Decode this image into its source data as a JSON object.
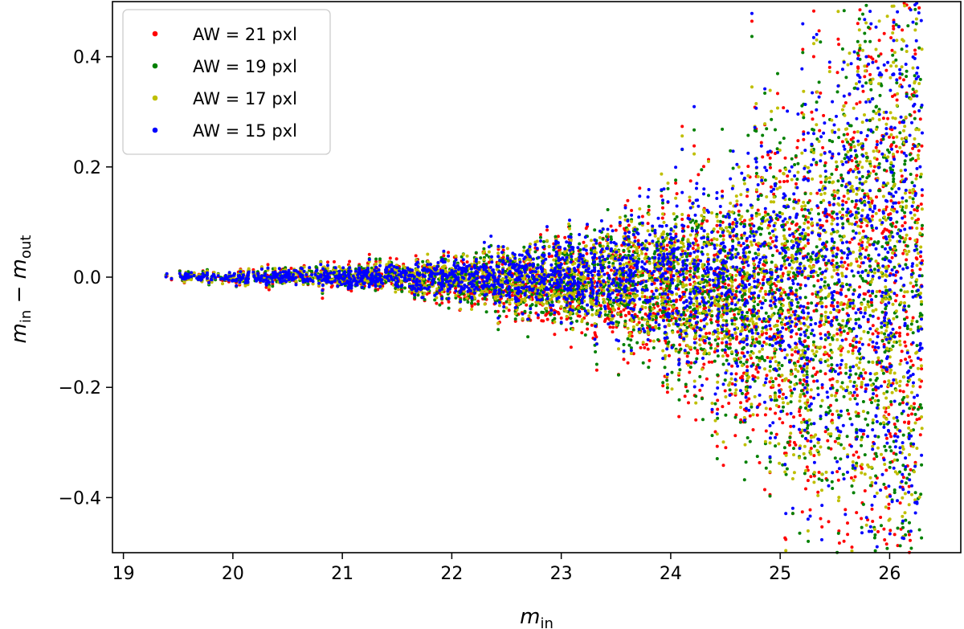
{
  "chart_data": {
    "type": "scatter",
    "title": "",
    "xlabel": {
      "main": "m",
      "sub": "in"
    },
    "ylabel": {
      "m1": "m",
      "sub1": "in",
      "op": " − ",
      "m2": "m",
      "sub2": "out"
    },
    "xlim": [
      18.9,
      26.65
    ],
    "ylim": [
      -0.5,
      0.5
    ],
    "xticks": [
      19,
      20,
      21,
      22,
      23,
      24,
      25,
      26
    ],
    "yticks": [
      -0.4,
      -0.2,
      0.0,
      0.2,
      0.4
    ],
    "ytick_labels": [
      "−0.4",
      "−0.2",
      "0.0",
      "0.2",
      "0.4"
    ],
    "grid": false,
    "legend_position": "top-left",
    "series": [
      {
        "name": "AW = 21 pxl",
        "color": "#ff0000",
        "spread_scale": 1.0,
        "bias": -0.035
      },
      {
        "name": "AW = 19 pxl",
        "color": "#008000",
        "spread_scale": 0.95,
        "bias": -0.025
      },
      {
        "name": "AW = 17 pxl",
        "color": "#bfbf00",
        "spread_scale": 0.9,
        "bias": -0.015
      },
      {
        "name": "AW = 15 pxl",
        "color": "#0000ff",
        "spread_scale": 0.85,
        "bias": 0.0
      }
    ],
    "x_range_data": [
      19.3,
      26.3
    ],
    "points_per_series": 2600
  }
}
